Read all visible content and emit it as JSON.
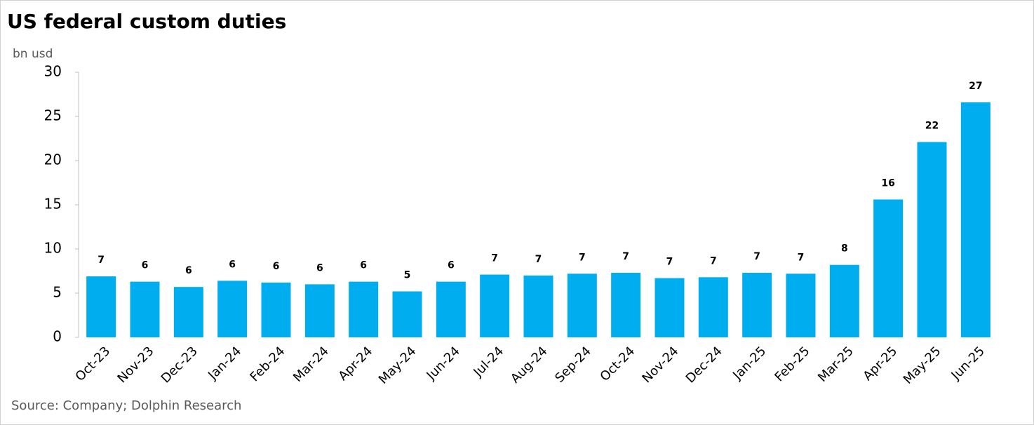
{
  "chart_data": {
    "type": "bar",
    "title": "US federal custom duties",
    "y_axis_label": "bn usd",
    "source": "Source: Company; Dolphin Research",
    "categories": [
      "Oct-23",
      "Nov-23",
      "Dec-23",
      "Jan-24",
      "Feb-24",
      "Mar-24",
      "Apr-24",
      "May-24",
      "Jun-24",
      "Jul-24",
      "Aug-24",
      "Sep-24",
      "Oct-24",
      "Nov-24",
      "Dec-24",
      "Jan-25",
      "Feb-25",
      "Mar-25",
      "Apr-25",
      "May-25",
      "Jun-25"
    ],
    "values": [
      6.9,
      6.3,
      5.7,
      6.4,
      6.2,
      6.0,
      6.3,
      5.2,
      6.3,
      7.1,
      7.0,
      7.2,
      7.3,
      6.7,
      6.8,
      7.3,
      7.2,
      8.2,
      15.6,
      22.1,
      26.6
    ],
    "value_labels": [
      "7",
      "6",
      "6",
      "6",
      "6",
      "6",
      "6",
      "5",
      "6",
      "7",
      "7",
      "7",
      "7",
      "7",
      "7",
      "7",
      "7",
      "8",
      "16",
      "22",
      "27"
    ],
    "color": "#00aeef",
    "ylim": [
      0,
      30
    ],
    "yticks": [
      0,
      5,
      10,
      15,
      20,
      25,
      30
    ],
    "grid": false
  }
}
